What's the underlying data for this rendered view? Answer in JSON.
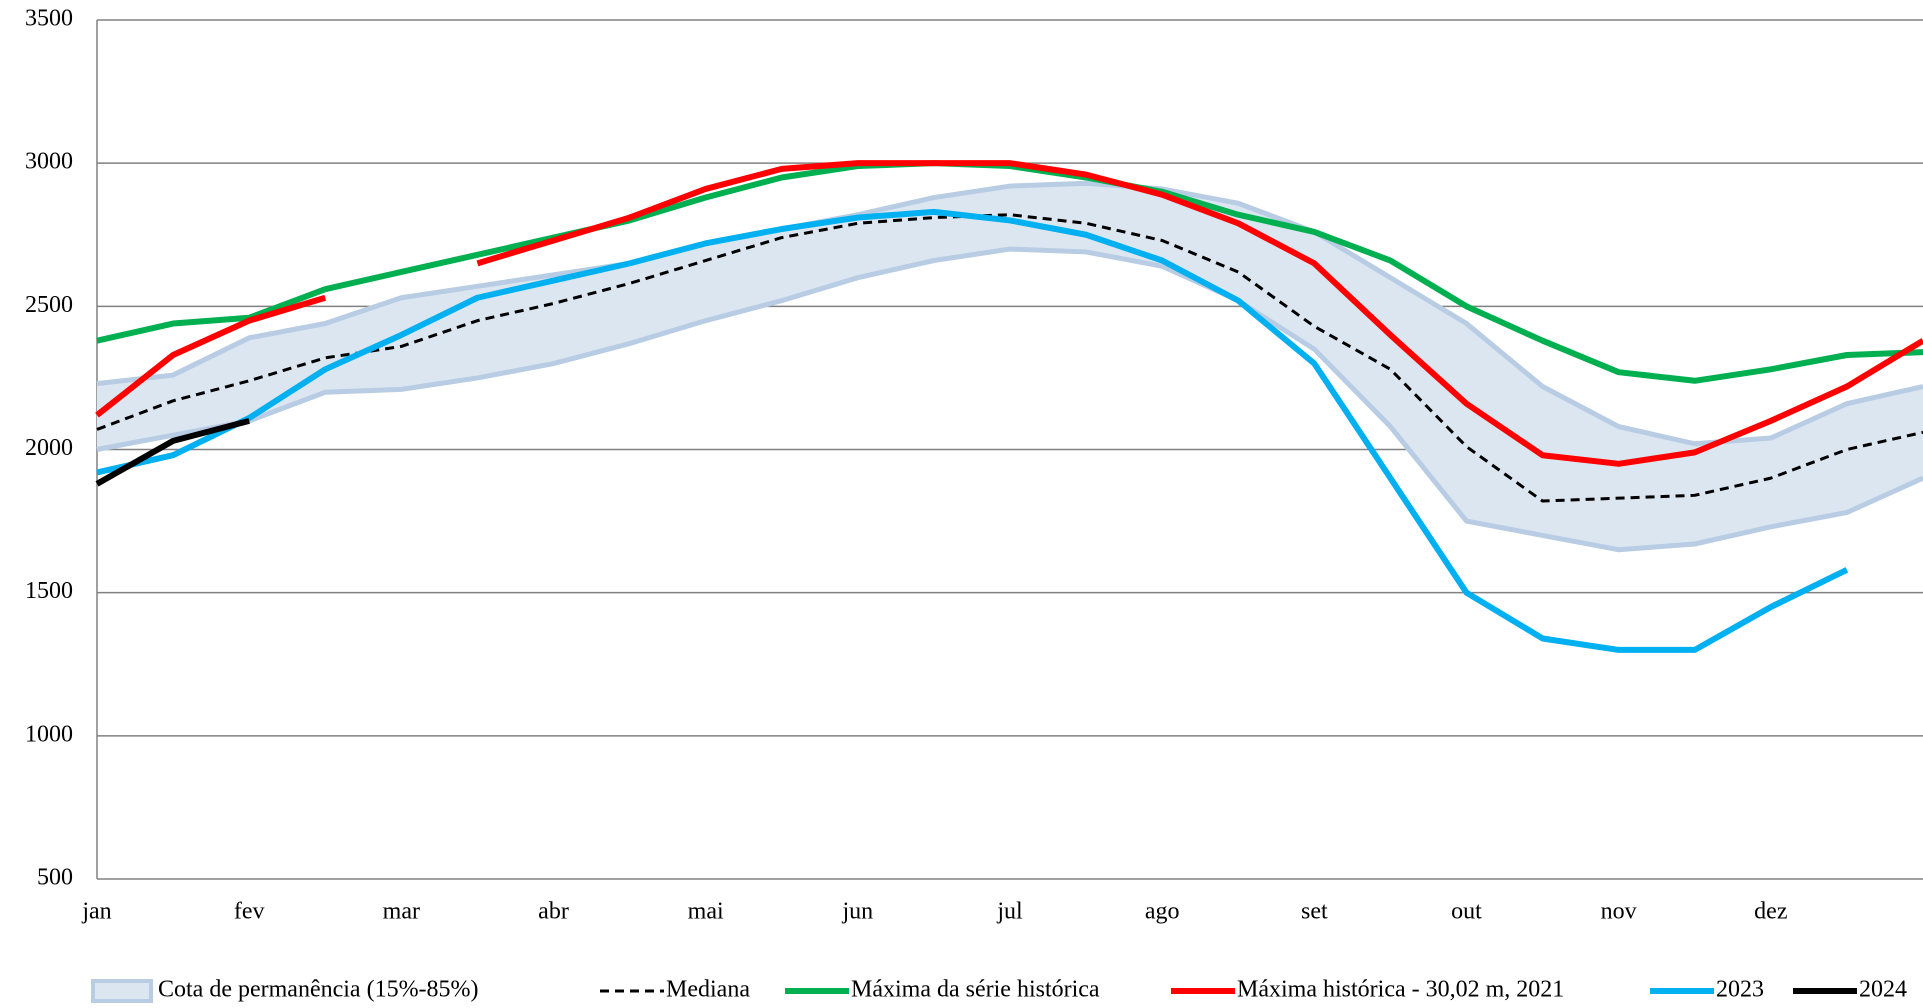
{
  "chart_data": {
    "type": "line",
    "categories": [
      "jan",
      null,
      "fev",
      null,
      "mar",
      null,
      "abr",
      null,
      "mai",
      null,
      "jun",
      null,
      "jul",
      null,
      "ago",
      null,
      "set",
      null,
      "out",
      null,
      "nov",
      null,
      "dez",
      null,
      null
    ],
    "ylim": [
      500,
      3500
    ],
    "yticks": [
      500,
      1000,
      1500,
      2000,
      2500,
      3000,
      3500
    ],
    "grid": true,
    "band": {
      "name": "Cota de permanência (15%-85%)",
      "color": "#b8cce4",
      "fill": "#dce6f1",
      "high": [
        2230,
        2260,
        2390,
        2440,
        2530,
        2570,
        2610,
        2650,
        2720,
        2770,
        2820,
        2880,
        2920,
        2930,
        2910,
        2860,
        2760,
        2600,
        2440,
        2220,
        2080,
        2020,
        2040,
        2160,
        2220
      ],
      "low": [
        2000,
        2050,
        2100,
        2200,
        2210,
        2250,
        2300,
        2370,
        2450,
        2520,
        2600,
        2660,
        2700,
        2690,
        2640,
        2520,
        2350,
        2080,
        1750,
        1700,
        1650,
        1670,
        1730,
        1780,
        1900
      ]
    },
    "series": [
      {
        "name": "Mediana",
        "color": "#000000",
        "dashed": true,
        "values": [
          2070,
          2170,
          2240,
          2320,
          2360,
          2450,
          2510,
          2580,
          2660,
          2740,
          2790,
          2810,
          2820,
          2790,
          2730,
          2620,
          2430,
          2280,
          2010,
          1820,
          1830,
          1840,
          1900,
          2000,
          2060
        ]
      },
      {
        "name": "Máxima da série histórica",
        "color": "#00b050",
        "dashed": false,
        "values": [
          2380,
          2440,
          2460,
          2560,
          2620,
          2680,
          2740,
          2800,
          2880,
          2950,
          2990,
          3000,
          2990,
          2950,
          2900,
          2820,
          2760,
          2660,
          2500,
          2380,
          2270,
          2240,
          2280,
          2330,
          2340
        ]
      },
      {
        "name": "Máxima histórica - 30,02 m, 2021",
        "color": "#ff0000",
        "dashed": false,
        "values": [
          2120,
          2330,
          2450,
          2530,
          null,
          2650,
          2730,
          2810,
          2910,
          2980,
          3000,
          3000,
          3000,
          2960,
          2890,
          2790,
          2650,
          2400,
          2160,
          1980,
          1950,
          1990,
          2100,
          2220,
          2380
        ]
      },
      {
        "name": "2023",
        "color": "#00b0f0",
        "dashed": false,
        "values": [
          1920,
          1980,
          2110,
          2280,
          2400,
          2530,
          2590,
          2650,
          2720,
          2770,
          2810,
          2830,
          2800,
          2750,
          2660,
          2520,
          2300,
          1900,
          1500,
          1340,
          1300,
          1300,
          1450,
          1580,
          null
        ]
      },
      {
        "name": "2024",
        "color": "#000000",
        "dashed": false,
        "values": [
          1880,
          2030,
          2100,
          null,
          null,
          null,
          null,
          null,
          null,
          null,
          null,
          null,
          null,
          null,
          null,
          null,
          null,
          null,
          null,
          null,
          null,
          null,
          null,
          null,
          null
        ]
      }
    ]
  }
}
